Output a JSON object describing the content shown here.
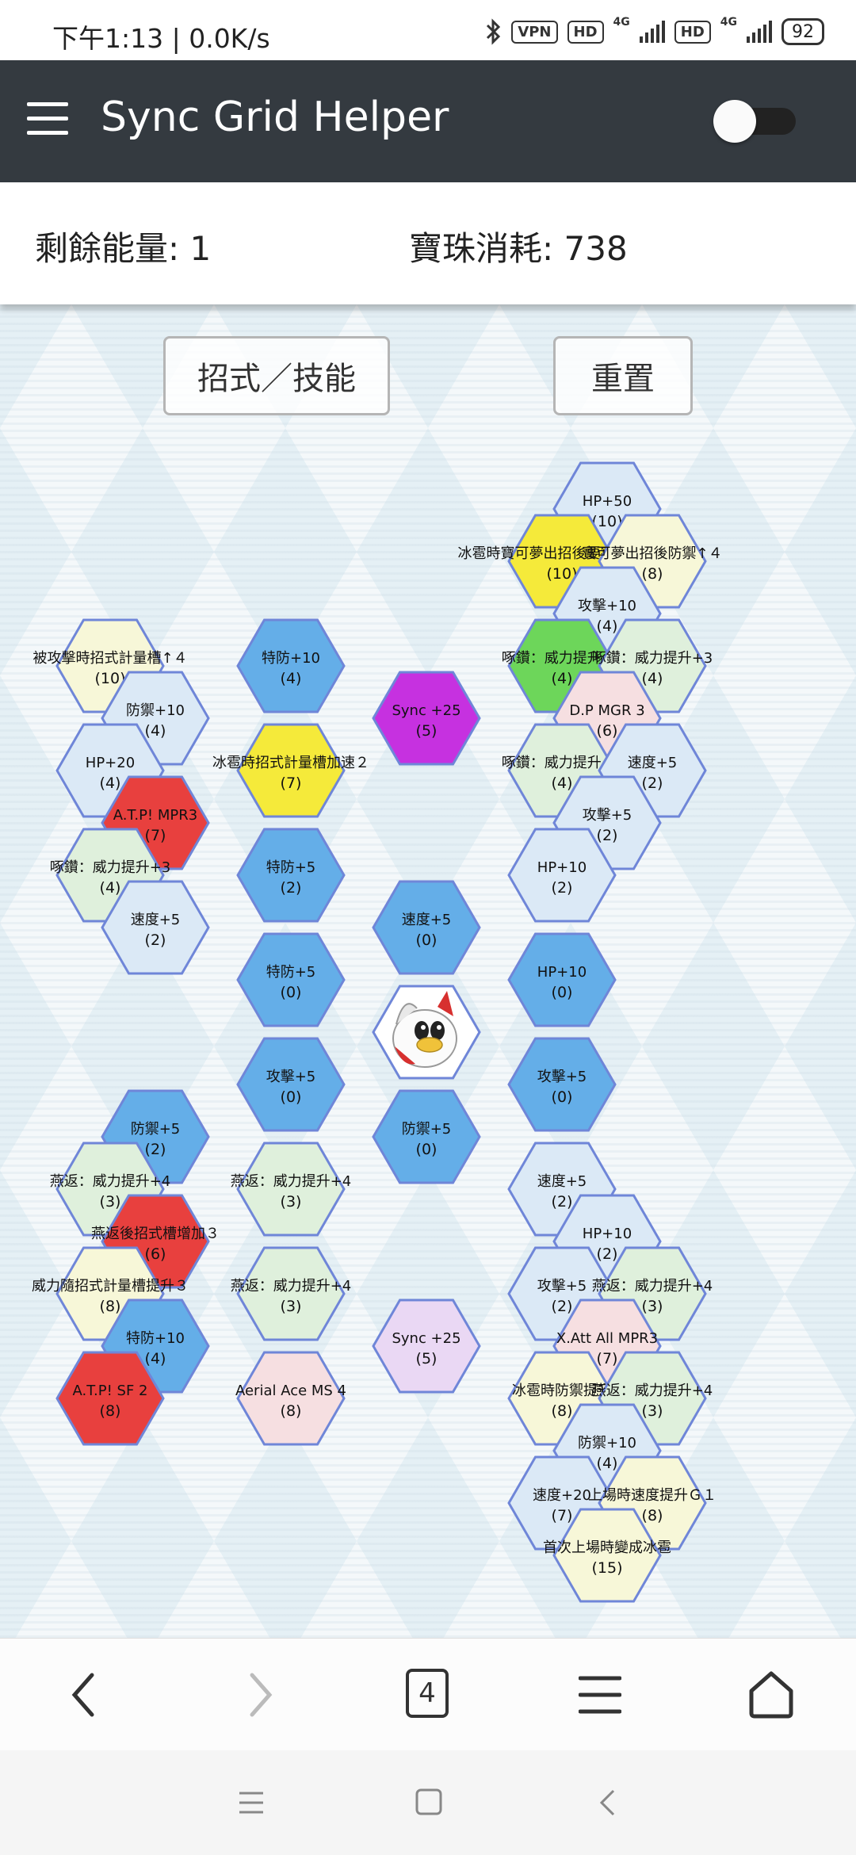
{
  "status_bar": {
    "time": "下午1:13 | 0.0K/s",
    "vpn_label": "VPN",
    "hd_label": "HD",
    "net_label": "4G",
    "battery": "92"
  },
  "app_bar": {
    "title": "Sync Grid Helper"
  },
  "info": {
    "energy_text": "剩餘能量: 1",
    "orb_text": "寶珠消耗: 738"
  },
  "buttons": {
    "moves": "招式／技能",
    "reset": "重置"
  },
  "colors": {
    "blue_active": "#64aee8",
    "blue_light": "#dbe9f6",
    "green_light": "#dff0dc",
    "yellow_light": "#f7f7d8",
    "pink_light": "#f6dfe1",
    "purple_light": "#ead8f4",
    "red": "#e8403e",
    "yellow": "#f5ea3a",
    "green": "#6dd65a",
    "purple": "#c631e0",
    "border": "#6f86d8"
  },
  "hexes": [
    {
      "c": 13,
      "r": 0,
      "label": "HP+50",
      "cost": "(10)",
      "fill": "blue_light"
    },
    {
      "c": 12,
      "r": 1,
      "label": "冰雹時寶可夢出招後要害率↑G１",
      "cost": "(10)",
      "fill": "yellow"
    },
    {
      "c": 14,
      "r": 1,
      "label": "寶可夢出招後防禦↑４",
      "cost": "(8)",
      "fill": "yellow_light"
    },
    {
      "c": 13,
      "r": 2,
      "label": "攻擊+10",
      "cost": "(4)",
      "fill": "blue_light"
    },
    {
      "c": 2,
      "r": 3,
      "label": "被攻擊時招式計量槽↑４",
      "cost": "(10)",
      "fill": "yellow_light"
    },
    {
      "c": 6,
      "r": 3,
      "label": "特防+10",
      "cost": "(4)",
      "fill": "blue_active"
    },
    {
      "c": 12,
      "r": 3,
      "label": "啄鑽：威力提升+3",
      "cost": "(4)",
      "fill": "green"
    },
    {
      "c": 14,
      "r": 3,
      "label": "啄鑽：威力提升+3",
      "cost": "(4)",
      "fill": "green_light"
    },
    {
      "c": 3,
      "r": 4,
      "label": "防禦+10",
      "cost": "(4)",
      "fill": "blue_light"
    },
    {
      "c": 9,
      "r": 4,
      "label": "Sync +25",
      "cost": "(5)",
      "fill": "purple"
    },
    {
      "c": 13,
      "r": 4,
      "label": "D.P MGR 3",
      "cost": "(6)",
      "fill": "pink_light"
    },
    {
      "c": 2,
      "r": 5,
      "label": "HP+20",
      "cost": "(4)",
      "fill": "blue_light"
    },
    {
      "c": 6,
      "r": 5,
      "label": "冰雹時招式計量槽加速２",
      "cost": "(7)",
      "fill": "yellow"
    },
    {
      "c": 12,
      "r": 5,
      "label": "啄鑽：威力提升+3",
      "cost": "(4)",
      "fill": "green_light"
    },
    {
      "c": 14,
      "r": 5,
      "label": "速度+5",
      "cost": "(2)",
      "fill": "blue_light"
    },
    {
      "c": 3,
      "r": 6,
      "label": "A.T.P! MPR3",
      "cost": "(7)",
      "fill": "red"
    },
    {
      "c": 13,
      "r": 6,
      "label": "攻擊+5",
      "cost": "(2)",
      "fill": "blue_light"
    },
    {
      "c": 2,
      "r": 7,
      "label": "啄鑽：威力提升+3",
      "cost": "(4)",
      "fill": "green_light"
    },
    {
      "c": 6,
      "r": 7,
      "label": "特防+5",
      "cost": "(2)",
      "fill": "blue_active"
    },
    {
      "c": 12,
      "r": 7,
      "label": "HP+10",
      "cost": "(2)",
      "fill": "blue_light"
    },
    {
      "c": 3,
      "r": 8,
      "label": "速度+5",
      "cost": "(2)",
      "fill": "blue_light"
    },
    {
      "c": 9,
      "r": 8,
      "label": "速度+5",
      "cost": "(0)",
      "fill": "blue_active"
    },
    {
      "c": 6,
      "r": 9,
      "label": "特防+5",
      "cost": "(0)",
      "fill": "blue_active"
    },
    {
      "c": 12,
      "r": 9,
      "label": "HP+10",
      "cost": "(0)",
      "fill": "blue_active"
    },
    {
      "c": 6,
      "r": 11,
      "label": "攻擊+5",
      "cost": "(0)",
      "fill": "blue_active"
    },
    {
      "c": 12,
      "r": 11,
      "label": "攻擊+5",
      "cost": "(0)",
      "fill": "blue_active"
    },
    {
      "c": 3,
      "r": 12,
      "label": "防禦+5",
      "cost": "(2)",
      "fill": "blue_active"
    },
    {
      "c": 9,
      "r": 12,
      "label": "防禦+5",
      "cost": "(0)",
      "fill": "blue_active"
    },
    {
      "c": 2,
      "r": 13,
      "label": "燕返：威力提升+4",
      "cost": "(3)",
      "fill": "green_light"
    },
    {
      "c": 6,
      "r": 13,
      "label": "燕返：威力提升+4",
      "cost": "(3)",
      "fill": "green_light"
    },
    {
      "c": 12,
      "r": 13,
      "label": "速度+5",
      "cost": "(2)",
      "fill": "blue_light"
    },
    {
      "c": 3,
      "r": 14,
      "label": "燕返後招式槽增加３",
      "cost": "(6)",
      "fill": "red"
    },
    {
      "c": 13,
      "r": 14,
      "label": "HP+10",
      "cost": "(2)",
      "fill": "blue_light"
    },
    {
      "c": 2,
      "r": 15,
      "label": "威力隨招式計量槽提升３",
      "cost": "(8)",
      "fill": "yellow_light"
    },
    {
      "c": 6,
      "r": 15,
      "label": "燕返：威力提升+4",
      "cost": "(3)",
      "fill": "green_light"
    },
    {
      "c": 12,
      "r": 15,
      "label": "攻擊+5",
      "cost": "(2)",
      "fill": "blue_light"
    },
    {
      "c": 14,
      "r": 15,
      "label": "燕返：威力提升+4",
      "cost": "(3)",
      "fill": "green_light"
    },
    {
      "c": 3,
      "r": 16,
      "label": "特防+10",
      "cost": "(4)",
      "fill": "blue_active"
    },
    {
      "c": 9,
      "r": 16,
      "label": "Sync +25",
      "cost": "(5)",
      "fill": "purple_light"
    },
    {
      "c": 13,
      "r": 16,
      "label": "X.Att All MPR3",
      "cost": "(7)",
      "fill": "pink_light"
    },
    {
      "c": 2,
      "r": 17,
      "label": "A.T.P! SF 2",
      "cost": "(8)",
      "fill": "red"
    },
    {
      "c": 6,
      "r": 17,
      "label": "Aerial Ace MS 4",
      "cost": "(8)",
      "fill": "pink_light"
    },
    {
      "c": 12,
      "r": 17,
      "label": "冰雹時防禦提升",
      "cost": "(8)",
      "fill": "yellow_light"
    },
    {
      "c": 14,
      "r": 17,
      "label": "燕返：威力提升+4",
      "cost": "(3)",
      "fill": "green_light"
    },
    {
      "c": 13,
      "r": 18,
      "label": "防禦+10",
      "cost": "(4)",
      "fill": "blue_light"
    },
    {
      "c": 12,
      "r": 19,
      "label": "速度+20",
      "cost": "(7)",
      "fill": "blue_light"
    },
    {
      "c": 14,
      "r": 19,
      "label": "上場時速度提升Ｇ１",
      "cost": "(8)",
      "fill": "yellow_light"
    },
    {
      "c": 13,
      "r": 20,
      "label": "首次上場時變成冰雹",
      "cost": "(15)",
      "fill": "yellow_light"
    }
  ],
  "center": {
    "c": 9,
    "r": 10,
    "icon": "delibird-avatar-icon"
  },
  "nav": {
    "tab_count": "4"
  }
}
